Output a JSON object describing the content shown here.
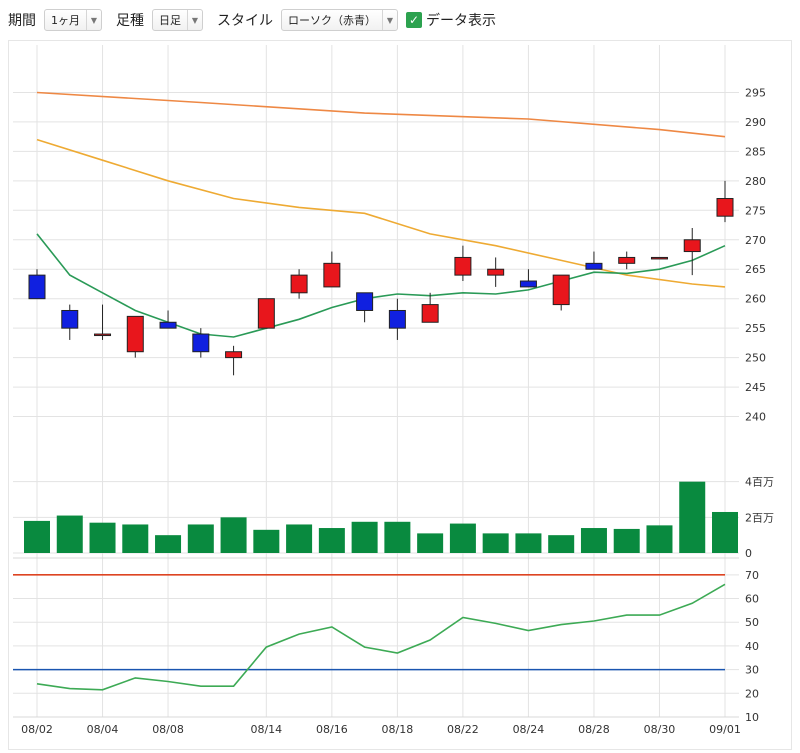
{
  "toolbar": {
    "period_label": "期間",
    "period_value": "1ヶ月",
    "candle_label": "足種",
    "candle_value": "日足",
    "style_label": "スタイル",
    "style_value": "ローソク（赤青）",
    "data_display_label": "データ表示",
    "data_display_checked": true
  },
  "chart_data": [
    {
      "type": "candlestick",
      "name": "price",
      "ylim": [
        235,
        300
      ],
      "yticks": [
        240,
        245,
        250,
        255,
        260,
        265,
        270,
        275,
        280,
        285,
        290,
        295
      ],
      "up_color": "#e8161c",
      "down_color": "#1020e0",
      "candles": [
        {
          "x": 0,
          "open": 264,
          "high": 265,
          "low": 260,
          "close": 260
        },
        {
          "x": 1,
          "open": 258,
          "high": 259,
          "low": 253,
          "close": 255
        },
        {
          "x": 2,
          "open": 254,
          "high": 259,
          "low": 253,
          "close": 254
        },
        {
          "x": 3,
          "open": 251,
          "high": 257,
          "low": 250,
          "close": 257
        },
        {
          "x": 4,
          "open": 256,
          "high": 258,
          "low": 255,
          "close": 255
        },
        {
          "x": 5,
          "open": 254,
          "high": 255,
          "low": 250,
          "close": 251
        },
        {
          "x": 6,
          "open": 250,
          "high": 252,
          "low": 247,
          "close": 251
        },
        {
          "x": 7,
          "open": 255,
          "high": 260,
          "low": 255,
          "close": 260
        },
        {
          "x": 8,
          "open": 261,
          "high": 265,
          "low": 260,
          "close": 264
        },
        {
          "x": 9,
          "open": 262,
          "high": 268,
          "low": 262,
          "close": 266
        },
        {
          "x": 10,
          "open": 261,
          "high": 261,
          "low": 256,
          "close": 258
        },
        {
          "x": 11,
          "open": 258,
          "high": 260,
          "low": 253,
          "close": 255
        },
        {
          "x": 12,
          "open": 256,
          "high": 261,
          "low": 256,
          "close": 259
        },
        {
          "x": 13,
          "open": 264,
          "high": 269,
          "low": 263,
          "close": 267
        },
        {
          "x": 14,
          "open": 264,
          "high": 267,
          "low": 262,
          "close": 265
        },
        {
          "x": 15,
          "open": 263,
          "high": 265,
          "low": 262,
          "close": 262
        },
        {
          "x": 16,
          "open": 259,
          "high": 264,
          "low": 258,
          "close": 264
        },
        {
          "x": 17,
          "open": 266,
          "high": 268,
          "low": 265,
          "close": 265
        },
        {
          "x": 18,
          "open": 266,
          "high": 268,
          "low": 265,
          "close": 267
        },
        {
          "x": 19,
          "open": 267,
          "high": 267,
          "low": 267,
          "close": 267
        },
        {
          "x": 20,
          "open": 268,
          "high": 272,
          "low": 264,
          "close": 270
        },
        {
          "x": 21,
          "open": 274,
          "high": 280,
          "low": 273,
          "close": 277
        }
      ],
      "series": [
        {
          "color": "#2a9a57",
          "values": [
            271,
            264,
            261,
            258,
            256,
            254,
            253.5,
            255,
            256.5,
            258.5,
            260,
            260.8,
            260.5,
            261,
            260.8,
            261.5,
            263,
            264.5,
            264.3,
            265,
            266.5,
            269
          ]
        },
        {
          "color": "#eeaa33",
          "x": [
            0,
            2,
            4,
            6,
            8,
            10,
            12,
            14,
            16,
            18,
            20,
            21
          ],
          "values": [
            287,
            283.5,
            280,
            277,
            275.5,
            274.5,
            271,
            269,
            266.5,
            264,
            262.5,
            262
          ]
        },
        {
          "color": "#ee8844",
          "x": [
            0,
            5,
            10,
            15,
            19,
            21
          ],
          "values": [
            295,
            293.3,
            291.5,
            290.5,
            288.7,
            287.5
          ]
        }
      ]
    },
    {
      "type": "bar",
      "name": "volume",
      "ylim": [
        0,
        6
      ],
      "yticks": [
        0,
        2,
        4
      ],
      "ytick_labels": [
        "0",
        "2百万",
        "4百万"
      ],
      "color": "#098a3f",
      "values": [
        1.8,
        2.1,
        1.7,
        1.6,
        1.0,
        1.6,
        2.0,
        1.3,
        1.6,
        1.4,
        1.75,
        1.75,
        1.1,
        1.65,
        1.1,
        1.1,
        1.0,
        1.4,
        1.35,
        1.55,
        4.0,
        2.3
      ]
    },
    {
      "type": "line",
      "name": "oscillator",
      "ylim": [
        10,
        75
      ],
      "yticks": [
        10,
        20,
        30,
        40,
        50,
        60,
        70
      ],
      "reference_lines": [
        {
          "value": 70,
          "color": "#dd4422"
        },
        {
          "value": 30,
          "color": "#1a55b0"
        }
      ],
      "series": [
        {
          "color": "#3daa55",
          "values": [
            24,
            22,
            21.5,
            26.5,
            25,
            23,
            23,
            39.5,
            45,
            48,
            39.5,
            37,
            42.5,
            52,
            49.5,
            46.5,
            49,
            50.5,
            53,
            53,
            58,
            66
          ]
        }
      ]
    }
  ],
  "x_axis": {
    "labels": [
      {
        "x": 0,
        "text": "08/02"
      },
      {
        "x": 2,
        "text": "08/04"
      },
      {
        "x": 4,
        "text": "08/08"
      },
      {
        "x": 7,
        "text": "08/14"
      },
      {
        "x": 9,
        "text": "08/16"
      },
      {
        "x": 11,
        "text": "08/18"
      },
      {
        "x": 13,
        "text": "08/22"
      },
      {
        "x": 15,
        "text": "08/24"
      },
      {
        "x": 17,
        "text": "08/28"
      },
      {
        "x": 19,
        "text": "08/30"
      },
      {
        "x": 21,
        "text": "09/01"
      }
    ]
  }
}
